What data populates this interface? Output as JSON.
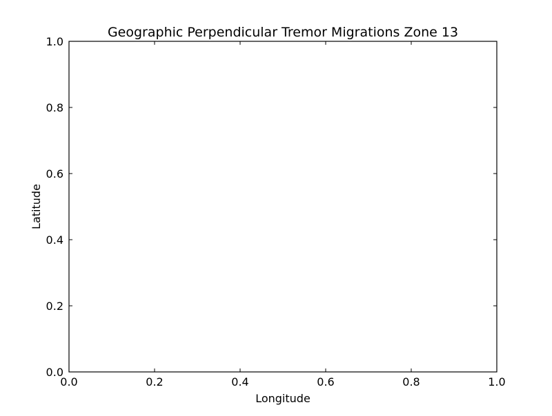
{
  "chart_data": {
    "type": "scatter",
    "title": "Geographic Perpendicular Tremor Migrations Zone 13",
    "xlabel": "Longitude",
    "ylabel": "Latitude",
    "xlim": [
      0.0,
      1.0
    ],
    "ylim": [
      0.0,
      1.0
    ],
    "x_ticks": [
      "0.0",
      "0.2",
      "0.4",
      "0.6",
      "0.8",
      "1.0"
    ],
    "y_ticks": [
      "0.0",
      "0.2",
      "0.4",
      "0.6",
      "0.8",
      "1.0"
    ],
    "grid": false,
    "series": []
  }
}
